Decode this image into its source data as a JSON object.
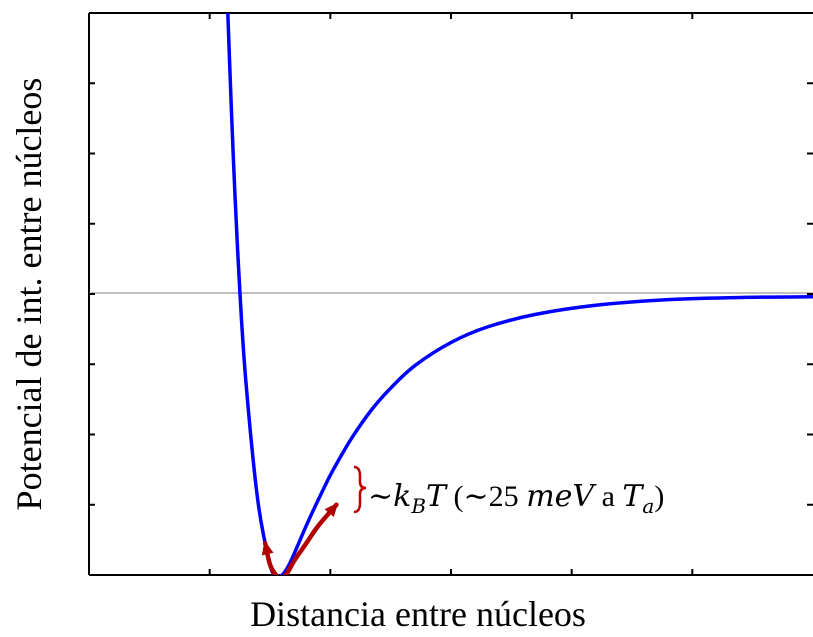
{
  "chart_data": {
    "type": "line",
    "title": "",
    "xlabel": "Distancia entre núcleos",
    "ylabel": "Potencial de int. entre núcleos",
    "xlim": [
      0,
      6
    ],
    "ylim": [
      -4,
      4
    ],
    "grid": false,
    "zero_line": true,
    "series": [
      {
        "color": "#0000ff",
        "x": [
          1.15,
          1.18,
          1.21,
          1.25,
          1.3,
          1.4,
          1.5,
          1.55,
          1.6,
          1.65,
          1.7,
          1.8,
          1.9,
          2.0,
          2.1,
          2.2,
          2.35,
          2.5,
          2.7,
          3.0,
          3.3,
          3.7,
          4.2,
          4.8,
          5.4,
          6.0
        ],
        "y": [
          4.0,
          2.62,
          1.4,
          0.05,
          -1.25,
          -2.95,
          -3.85,
          -4.0,
          -4.0,
          -3.88,
          -3.7,
          -3.3,
          -2.93,
          -2.58,
          -2.27,
          -1.99,
          -1.63,
          -1.34,
          -1.02,
          -0.69,
          -0.47,
          -0.29,
          -0.16,
          -0.08,
          -0.05,
          -0.04
        ]
      }
    ],
    "highlight": {
      "color": "#b00000",
      "x": [
        1.46,
        1.5,
        1.55,
        1.6,
        1.65,
        1.7,
        1.8,
        1.9,
        2.05
      ],
      "y": [
        -3.55,
        -3.85,
        -4.0,
        -4.05,
        -3.95,
        -3.8,
        -3.55,
        -3.3,
        -3.0
      ]
    },
    "annotation": {
      "prefix": "∼",
      "k": "k",
      "sub_B": "B",
      "T": "T",
      "paren_open": " (∼25 ",
      "unit": "meV",
      "a_text": " a ",
      "Ta": "T",
      "sub_a": "a",
      "paren_close": ")"
    }
  }
}
